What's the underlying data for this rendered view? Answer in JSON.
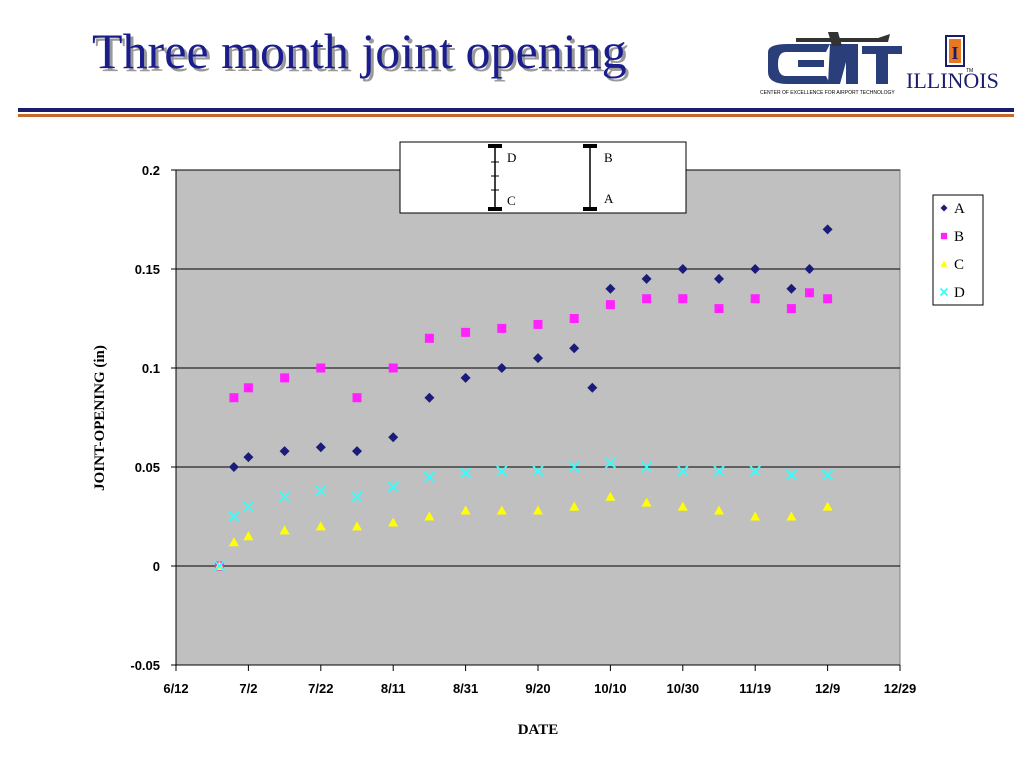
{
  "slide": {
    "title": "Three month joint opening"
  },
  "logo": {
    "brand": "CEAT",
    "tagline": "CENTER OF EXCELLENCE FOR AIRPORT TECHNOLOGY",
    "university": "ILLINOIS",
    "trademark": "TM",
    "i_block": "I"
  },
  "inset": {
    "labels": [
      "D",
      "C",
      "B",
      "A"
    ]
  },
  "colors": {
    "plot_bg": "#c0c0c0",
    "A": "#1b1c7a",
    "B": "#ff22ff",
    "C": "#ffff00",
    "D": "#33ffff"
  },
  "chart_data": {
    "type": "scatter",
    "title": "",
    "xlabel": "DATE",
    "ylabel": "JOINT-OPENING (in)",
    "x_tick_labels": [
      "6/12",
      "7/2",
      "7/22",
      "8/11",
      "8/31",
      "9/20",
      "10/10",
      "10/30",
      "11/19",
      "12/9",
      "12/29"
    ],
    "xlim": [
      "6/12",
      "12/29"
    ],
    "ylim": [
      -0.05,
      0.2
    ],
    "y_ticks": [
      -0.05,
      0,
      0.05,
      0.1,
      0.15,
      0.2
    ],
    "y_tick_labels": [
      "-0.05",
      "0",
      "0.05",
      "0.1",
      "0.15",
      "0.2"
    ],
    "grid": "horizontal",
    "legend": "right",
    "series": [
      {
        "name": "A",
        "marker": "diamond",
        "x": [
          "6/24",
          "6/28",
          "7/2",
          "7/12",
          "7/22",
          "8/1",
          "8/11",
          "8/21",
          "8/31",
          "9/10",
          "9/20",
          "9/30",
          "10/5",
          "10/10",
          "10/20",
          "10/30",
          "11/9",
          "11/19",
          "11/29",
          "12/4",
          "12/9"
        ],
        "y": [
          0.0,
          0.05,
          0.055,
          0.058,
          0.06,
          0.058,
          0.065,
          0.085,
          0.095,
          0.1,
          0.105,
          0.11,
          0.09,
          0.14,
          0.145,
          0.15,
          0.145,
          0.15,
          0.14,
          0.15,
          0.17
        ]
      },
      {
        "name": "B",
        "marker": "square",
        "x": [
          "6/24",
          "6/28",
          "7/2",
          "7/12",
          "7/22",
          "8/1",
          "8/11",
          "8/21",
          "8/31",
          "9/10",
          "9/20",
          "9/30",
          "10/10",
          "10/20",
          "10/30",
          "11/9",
          "11/19",
          "11/29",
          "12/4",
          "12/9"
        ],
        "y": [
          0.0,
          0.085,
          0.09,
          0.095,
          0.1,
          0.085,
          0.1,
          0.115,
          0.118,
          0.12,
          0.122,
          0.125,
          0.132,
          0.135,
          0.135,
          0.13,
          0.135,
          0.13,
          0.138,
          0.135
        ]
      },
      {
        "name": "C",
        "marker": "triangle",
        "x": [
          "6/24",
          "6/28",
          "7/2",
          "7/12",
          "7/22",
          "8/1",
          "8/11",
          "8/21",
          "8/31",
          "9/10",
          "9/20",
          "9/30",
          "10/10",
          "10/20",
          "10/30",
          "11/9",
          "11/19",
          "11/29",
          "12/9"
        ],
        "y": [
          0.0,
          0.012,
          0.015,
          0.018,
          0.02,
          0.02,
          0.022,
          0.025,
          0.028,
          0.028,
          0.028,
          0.03,
          0.035,
          0.032,
          0.03,
          0.028,
          0.025,
          0.025,
          0.03
        ]
      },
      {
        "name": "D",
        "marker": "x",
        "x": [
          "6/24",
          "6/28",
          "7/2",
          "7/12",
          "7/22",
          "8/1",
          "8/11",
          "8/21",
          "8/31",
          "9/10",
          "9/20",
          "9/30",
          "10/10",
          "10/20",
          "10/30",
          "11/9",
          "11/19",
          "11/29",
          "12/9"
        ],
        "y": [
          0.0,
          0.025,
          0.03,
          0.035,
          0.038,
          0.035,
          0.04,
          0.045,
          0.047,
          0.048,
          0.048,
          0.05,
          0.052,
          0.05,
          0.048,
          0.048,
          0.048,
          0.046,
          0.046
        ]
      }
    ]
  }
}
